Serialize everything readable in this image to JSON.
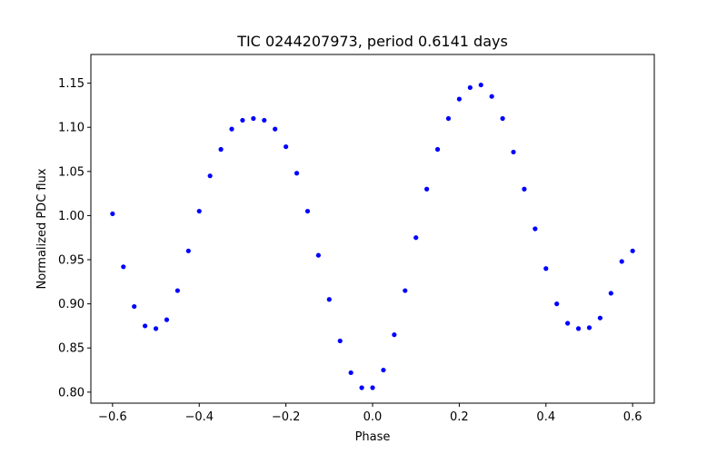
{
  "chart_data": {
    "type": "scatter",
    "title": "TIC 0244207973, period 0.6141 days",
    "xlabel": "Phase",
    "ylabel": "Normalized PDC flux",
    "xlim": [
      -0.65,
      0.65
    ],
    "ylim": [
      0.7875,
      1.1825
    ],
    "x_ticks": [
      -0.6,
      -0.4,
      -0.2,
      0.0,
      0.2,
      0.4,
      0.6
    ],
    "x_tick_labels": [
      "−0.6",
      "−0.4",
      "−0.2",
      "0.0",
      "0.2",
      "0.4",
      "0.6"
    ],
    "y_ticks": [
      0.8,
      0.85,
      0.9,
      0.95,
      1.0,
      1.05,
      1.1,
      1.15
    ],
    "y_tick_labels": [
      "0.80",
      "0.85",
      "0.90",
      "0.95",
      "1.00",
      "1.05",
      "1.10",
      "1.15"
    ],
    "grid": false,
    "marker_color": "#0000ff",
    "series": [
      {
        "name": "PDC flux",
        "x": [
          -0.6,
          -0.575,
          -0.55,
          -0.525,
          -0.5,
          -0.475,
          -0.45,
          -0.425,
          -0.4,
          -0.375,
          -0.35,
          -0.325,
          -0.3,
          -0.275,
          -0.25,
          -0.225,
          -0.2,
          -0.175,
          -0.15,
          -0.125,
          -0.1,
          -0.075,
          -0.05,
          -0.025,
          0.0,
          0.025,
          0.05,
          0.075,
          0.1,
          0.125,
          0.15,
          0.175,
          0.2,
          0.225,
          0.25,
          0.275,
          0.3,
          0.325,
          0.35,
          0.375,
          0.4,
          0.425,
          0.45,
          0.475,
          0.5,
          0.525,
          0.55,
          0.575,
          0.6
        ],
        "y": [
          1.002,
          0.942,
          0.897,
          0.875,
          0.872,
          0.882,
          0.915,
          0.96,
          1.005,
          1.045,
          1.075,
          1.098,
          1.108,
          1.11,
          1.108,
          1.098,
          1.078,
          1.048,
          1.005,
          0.955,
          0.905,
          0.858,
          0.822,
          0.805,
          0.805,
          0.825,
          0.865,
          0.915,
          0.975,
          1.03,
          1.075,
          1.11,
          1.132,
          1.145,
          1.148,
          1.135,
          1.11,
          1.072,
          1.03,
          0.985,
          0.94,
          0.9,
          0.878,
          0.872,
          0.873,
          0.884,
          0.912,
          0.948,
          0.96
        ]
      }
    ]
  }
}
